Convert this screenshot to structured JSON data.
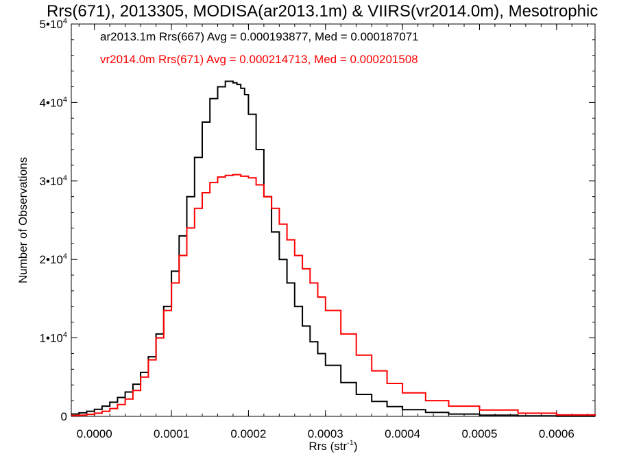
{
  "chart_data": {
    "type": "line",
    "title": "Rrs(671), 2013305, MODISA(ar2013.1m) & VIIRS(vr2014.0m), Mesotrophic",
    "xlabel": "Rrs (str",
    "xlabel_sup": "-1",
    "xlabel_end": ")",
    "ylabel": "Number of Observations",
    "xlim": [
      -3e-05,
      0.00065
    ],
    "ylim": [
      0,
      50000
    ],
    "x_ticks": [
      "0.0000",
      "0.0001",
      "0.0002",
      "0.0003",
      "0.0004",
      "0.0005",
      "0.0006"
    ],
    "x_tick_values": [
      0,
      0.0001,
      0.0002,
      0.0003,
      0.0004,
      0.0005,
      0.0006
    ],
    "y_ticks": [
      {
        "value": 0,
        "mantissa": "0",
        "exp": ""
      },
      {
        "value": 10000,
        "mantissa": "1•10",
        "exp": "4"
      },
      {
        "value": 20000,
        "mantissa": "2•10",
        "exp": "4"
      },
      {
        "value": 30000,
        "mantissa": "3•10",
        "exp": "4"
      },
      {
        "value": 40000,
        "mantissa": "4•10",
        "exp": "4"
      },
      {
        "value": 50000,
        "mantissa": "5•10",
        "exp": "4"
      }
    ],
    "grid": false,
    "legend_position": "top-left",
    "series": [
      {
        "name": "ar2013.1m Rrs(667) Avg = 0.000193877, Med = 0.000187071",
        "color": "#000000",
        "step": true,
        "x": [
          -3e-05,
          -2e-05,
          -1e-05,
          0.0,
          1e-05,
          2e-05,
          3e-05,
          4e-05,
          5e-05,
          6e-05,
          7e-05,
          8e-05,
          9e-05,
          0.0001,
          0.00011,
          0.00012,
          0.00013,
          0.00014,
          0.00015,
          0.00016,
          0.00017,
          0.00018,
          0.000185,
          0.00019,
          0.000195,
          0.0002,
          0.00021,
          0.00022,
          0.00023,
          0.00024,
          0.00025,
          0.00026,
          0.00027,
          0.00028,
          0.00029,
          0.0003,
          0.00032,
          0.00034,
          0.00036,
          0.00038,
          0.0004,
          0.00043,
          0.00046,
          0.0005,
          0.00055,
          0.0006,
          0.00065
        ],
        "y": [
          300,
          450,
          650,
          900,
          1300,
          1800,
          2400,
          3100,
          4100,
          5600,
          7600,
          10500,
          14000,
          18500,
          23000,
          28000,
          33000,
          37500,
          40500,
          42000,
          42700,
          42500,
          42300,
          41800,
          41000,
          38500,
          34000,
          28000,
          23500,
          20000,
          17000,
          14000,
          11500,
          9500,
          8000,
          6500,
          4300,
          2800,
          1900,
          1250,
          850,
          500,
          300,
          150,
          60,
          20,
          5
        ]
      },
      {
        "name": "vr2014.0m Rrs(671) Avg = 0.000214713, Med = 0.000201508",
        "color": "#ff0000",
        "step": true,
        "x": [
          -3e-05,
          -2e-05,
          -1e-05,
          0.0,
          1e-05,
          2e-05,
          3e-05,
          4e-05,
          5e-05,
          6e-05,
          7e-05,
          8e-05,
          9e-05,
          0.0001,
          0.00011,
          0.00012,
          0.00013,
          0.00014,
          0.00015,
          0.00016,
          0.00017,
          0.00018,
          0.00019,
          0.0002,
          0.00021,
          0.00022,
          0.00023,
          0.00024,
          0.00025,
          0.00026,
          0.00027,
          0.00028,
          0.00029,
          0.0003,
          0.00032,
          0.00034,
          0.00036,
          0.00038,
          0.0004,
          0.00043,
          0.00046,
          0.0005,
          0.00055,
          0.0006,
          0.00065
        ],
        "y": [
          100,
          150,
          250,
          400,
          650,
          1000,
          1500,
          2200,
          3300,
          5000,
          7200,
          10000,
          13500,
          17000,
          20500,
          24000,
          26500,
          28500,
          29800,
          30500,
          30700,
          30800,
          30600,
          30400,
          29500,
          28000,
          26500,
          24500,
          22500,
          20500,
          18800,
          17000,
          15200,
          13500,
          10500,
          7800,
          5800,
          4200,
          3000,
          2000,
          1300,
          800,
          400,
          180,
          60
        ]
      }
    ]
  }
}
